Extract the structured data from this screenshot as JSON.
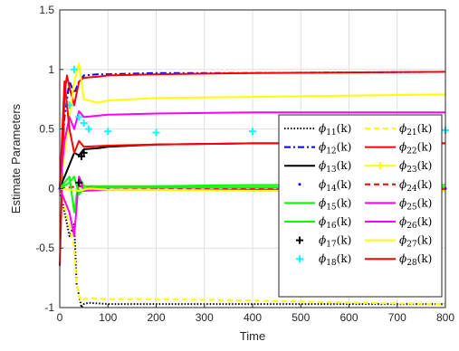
{
  "chart_data": {
    "type": "line",
    "title": "",
    "xlabel": "Time",
    "ylabel": "Estimate Parameters",
    "xlim": [
      0,
      800
    ],
    "ylim": [
      -1,
      1.5
    ],
    "xticks": [
      0,
      100,
      200,
      300,
      400,
      500,
      600,
      700,
      800
    ],
    "yticks": [
      -1,
      -0.5,
      0,
      0.5,
      1,
      1.5
    ],
    "xtick_labels": [
      "0",
      "100",
      "200",
      "300",
      "400",
      "500",
      "600",
      "700",
      "800"
    ],
    "ytick_labels": [
      "-1",
      "-0.5",
      "0",
      "0.5",
      "1",
      "1.5"
    ],
    "grid": true,
    "legend_position": "right",
    "series": [
      {
        "name": "11",
        "color": "#000000",
        "style": "dotted",
        "x": [
          0,
          20,
          30,
          35,
          40,
          45,
          50,
          60,
          100,
          200,
          400,
          600,
          800
        ],
        "y": [
          0,
          -0.4,
          -0.3,
          -0.8,
          -0.9,
          -1.0,
          -0.97,
          -0.96,
          -0.97,
          -0.97,
          -0.97,
          -0.97,
          -0.97
        ]
      },
      {
        "name": "21",
        "color": "#FFFF00",
        "style": "dashed",
        "x": [
          0,
          20,
          30,
          35,
          40,
          45,
          50,
          60,
          100,
          200,
          400,
          600,
          800
        ],
        "y": [
          0,
          -0.3,
          -0.5,
          -0.8,
          -0.9,
          -0.95,
          -0.93,
          -0.92,
          -0.93,
          -0.93,
          -0.94,
          -0.96,
          -0.97
        ]
      },
      {
        "name": "12",
        "color": "#0000FF",
        "style": "dashdot",
        "x": [
          0,
          10,
          20,
          30,
          40,
          50,
          80,
          100,
          200,
          400,
          800
        ],
        "y": [
          0,
          0.6,
          0.9,
          0.8,
          0.9,
          0.95,
          0.96,
          0.96,
          0.97,
          0.97,
          0.98
        ]
      },
      {
        "name": "22",
        "color": "#FF0000",
        "style": "solid",
        "x": [
          0,
          10,
          15,
          20,
          30,
          40,
          50,
          80,
          100,
          200,
          400,
          800
        ],
        "y": [
          -0.65,
          0.8,
          0.95,
          0.85,
          0.7,
          0.9,
          0.93,
          0.94,
          0.95,
          0.96,
          0.97,
          0.98
        ]
      },
      {
        "name": "13",
        "color": "#000000",
        "style": "solid",
        "x": [
          0,
          20,
          30,
          40,
          50,
          80,
          100,
          200,
          400,
          800
        ],
        "y": [
          0,
          0.2,
          0.3,
          0.28,
          0.33,
          0.34,
          0.35,
          0.37,
          0.38,
          0.38
        ]
      },
      {
        "name": "23",
        "color": "#FFFF00",
        "style": "solid",
        "x": [
          0,
          20,
          30,
          40,
          50,
          80,
          100,
          200,
          400,
          800
        ],
        "y": [
          0,
          0.6,
          0.9,
          1.05,
          0.75,
          0.72,
          0.74,
          0.76,
          0.77,
          0.79
        ]
      },
      {
        "name": "14",
        "color": "#0000FF",
        "style": "points",
        "x": [
          0,
          40,
          60,
          100,
          200,
          400,
          800
        ],
        "y": [
          0,
          -0.02,
          0,
          0,
          0,
          0,
          0
        ]
      },
      {
        "name": "24",
        "color": "#FF0000",
        "style": "dashed",
        "x": [
          0,
          40,
          60,
          100,
          200,
          400,
          800
        ],
        "y": [
          0,
          0.02,
          0.01,
          0.01,
          0,
          0,
          0
        ]
      },
      {
        "name": "15",
        "color": "#00FF00",
        "style": "solid",
        "x": [
          0,
          20,
          30,
          40,
          50,
          100,
          200,
          400,
          800
        ],
        "y": [
          0,
          0.1,
          -0.2,
          0.1,
          0.02,
          0.02,
          0.02,
          0.03,
          0.03
        ]
      },
      {
        "name": "25",
        "color": "#FF00FF",
        "style": "solid",
        "x": [
          0,
          20,
          30,
          40,
          50,
          100,
          200,
          400,
          800
        ],
        "y": [
          0,
          -0.2,
          -0.4,
          0.1,
          -0.02,
          -0.01,
          -0.01,
          -0.01,
          -0.01
        ]
      },
      {
        "name": "16",
        "color": "#00FF00",
        "style": "solid",
        "x": [
          0,
          20,
          30,
          40,
          50,
          100,
          200,
          400,
          800
        ],
        "y": [
          0,
          0.05,
          0.1,
          -0.05,
          0,
          0.01,
          0.01,
          0.01,
          0.01
        ]
      },
      {
        "name": "26",
        "color": "#FF00FF",
        "style": "solid",
        "x": [
          0,
          10,
          20,
          30,
          40,
          50,
          100,
          200,
          400,
          800
        ],
        "y": [
          0,
          0.4,
          0.6,
          0.5,
          0.65,
          0.6,
          0.62,
          0.63,
          0.64,
          0.64
        ]
      },
      {
        "name": "17",
        "color": "#000000",
        "style": "plus",
        "x": [
          40,
          45,
          50
        ],
        "y": [
          0.05,
          0.27,
          0.3
        ]
      },
      {
        "name": "27",
        "color": "#FFFF00",
        "style": "solid",
        "x": [
          0,
          40,
          60,
          100,
          200,
          400,
          800
        ],
        "y": [
          0,
          -0.02,
          0,
          -0.01,
          -0.01,
          -0.02,
          -0.02
        ]
      },
      {
        "name": "18",
        "color": "#00FFFF",
        "style": "plus",
        "x": [
          20,
          30,
          40,
          50,
          60,
          100,
          200,
          400,
          800
        ],
        "y": [
          0.7,
          1.0,
          0.6,
          0.55,
          0.5,
          0.48,
          0.47,
          0.48,
          0.49
        ]
      },
      {
        "name": "28",
        "color": "#FF0000",
        "style": "solid",
        "x": [
          0,
          10,
          20,
          30,
          40,
          50,
          100,
          200,
          400,
          800
        ],
        "y": [
          0,
          0.9,
          0.5,
          0.3,
          0.4,
          0.35,
          0.36,
          0.37,
          0.38,
          0.38
        ]
      }
    ],
    "legend_entries": [
      {
        "sub": "11",
        "suffix": "(k)",
        "color": "#000000",
        "style": "dotted"
      },
      {
        "sub": "21",
        "suffix": "(k)",
        "color": "#FFFF00",
        "style": "dashed"
      },
      {
        "sub": "12",
        "suffix": "(k)",
        "color": "#0000FF",
        "style": "dashdot"
      },
      {
        "sub": "22",
        "suffix": "(k)",
        "color": "#FF0000",
        "style": "solid"
      },
      {
        "sub": "13",
        "suffix": "(k)",
        "color": "#000000",
        "style": "solid"
      },
      {
        "sub": "23",
        "suffix": "(k)",
        "color": "#FFFF00",
        "style": "solidplus"
      },
      {
        "sub": "14",
        "suffix": "(k)",
        "color": "#0000FF",
        "style": "points"
      },
      {
        "sub": "24",
        "suffix": "(k)",
        "color": "#FF0000",
        "style": "dashed"
      },
      {
        "sub": "15",
        "suffix": "(k)",
        "color": "#00FF00",
        "style": "solid"
      },
      {
        "sub": "25",
        "suffix": "(k)",
        "color": "#FF00FF",
        "style": "solid"
      },
      {
        "sub": "16",
        "suffix": "(k)",
        "color": "#00FF00",
        "style": "solid"
      },
      {
        "sub": "26",
        "suffix": "(k)",
        "color": "#FF00FF",
        "style": "solid"
      },
      {
        "sub": "17",
        "suffix": "(k)",
        "color": "#000000",
        "style": "plus"
      },
      {
        "sub": "27",
        "suffix": "(k)",
        "color": "#FFFF00",
        "style": "solid"
      },
      {
        "sub": "18",
        "suffix": "(k)",
        "color": "#00FFFF",
        "style": "plus"
      },
      {
        "sub": "28",
        "suffix": "(k)",
        "color": "#FF0000",
        "style": "solid"
      }
    ],
    "legend_symbol": "ϕ"
  }
}
